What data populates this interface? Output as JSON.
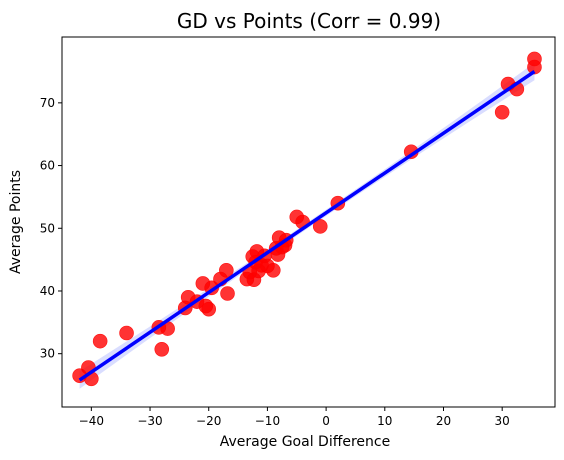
{
  "chart_data": {
    "type": "scatter",
    "title": "GD vs Points (Corr = 0.99)",
    "xlabel": "Average Goal Difference",
    "ylabel": "Average Points",
    "xlim": [
      -45,
      39
    ],
    "ylim": [
      21.5,
      80.5
    ],
    "xticks": [
      -40,
      -30,
      -20,
      -10,
      0,
      10,
      20,
      30
    ],
    "yticks": [
      30,
      40,
      50,
      60,
      70
    ],
    "xtick_labels": [
      "−40",
      "−30",
      "−20",
      "−10",
      "0",
      "10",
      "20",
      "30"
    ],
    "ytick_labels": [
      "30",
      "40",
      "50",
      "60",
      "70"
    ],
    "grid": false,
    "legend": "none",
    "point_color": "#ff0000",
    "line_color": "#0000ff",
    "band_color": "#aab4ff",
    "points": [
      [
        -42,
        26.5
      ],
      [
        -40.5,
        27.8
      ],
      [
        -40,
        26
      ],
      [
        -38.5,
        32
      ],
      [
        -34,
        33.3
      ],
      [
        -28.5,
        34.2
      ],
      [
        -28,
        30.7
      ],
      [
        -27,
        34
      ],
      [
        -24,
        37.3
      ],
      [
        -23.5,
        39
      ],
      [
        -22,
        38.3
      ],
      [
        -21,
        41.2
      ],
      [
        -20.5,
        37.6
      ],
      [
        -20,
        37.1
      ],
      [
        -19.5,
        40.5
      ],
      [
        -18,
        41.9
      ],
      [
        -17,
        43.3
      ],
      [
        -16.8,
        39.6
      ],
      [
        -13.5,
        41.9
      ],
      [
        -13,
        43
      ],
      [
        -12.5,
        45.5
      ],
      [
        -12.3,
        41.8
      ],
      [
        -12,
        44.6
      ],
      [
        -11.8,
        46.3
      ],
      [
        -11.5,
        43.2
      ],
      [
        -11,
        44.1
      ],
      [
        -10.5,
        45.6
      ],
      [
        -10,
        44
      ],
      [
        -9,
        43.3
      ],
      [
        -8.5,
        46.8
      ],
      [
        -8.2,
        45.8
      ],
      [
        -8,
        48.5
      ],
      [
        -7.5,
        47
      ],
      [
        -7,
        47.3
      ],
      [
        -6.8,
        48.1
      ],
      [
        -5,
        51.8
      ],
      [
        -4,
        51
      ],
      [
        -1,
        50.3
      ],
      [
        2,
        54
      ],
      [
        14.5,
        62.2
      ],
      [
        30,
        68.5
      ],
      [
        31,
        73
      ],
      [
        32.5,
        72.2
      ],
      [
        35.5,
        77
      ],
      [
        35.5,
        75.7
      ]
    ],
    "regression": {
      "x": [
        -42,
        35.5
      ],
      "y": [
        25.8,
        75.0
      ]
    },
    "band_halfwidth": {
      "ends": 1.4,
      "middle": 0.5
    }
  }
}
